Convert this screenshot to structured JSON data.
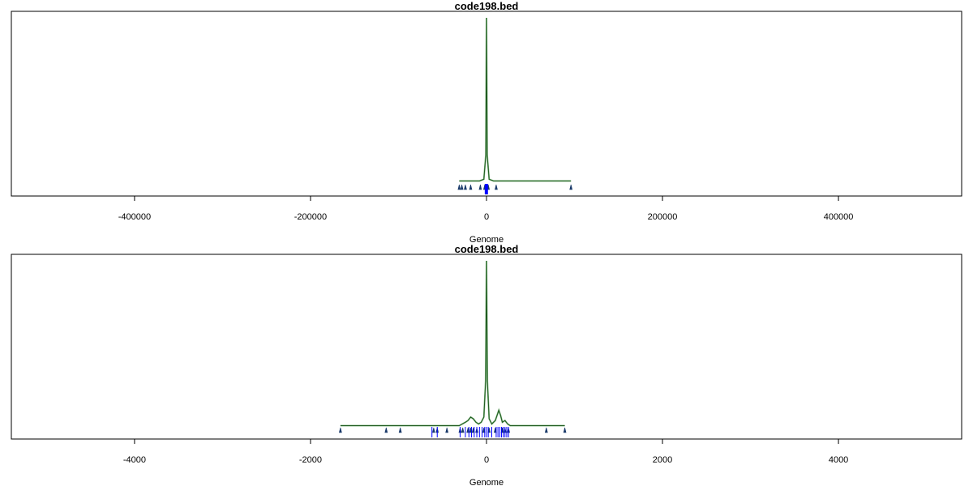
{
  "chart_data": [
    {
      "type": "line",
      "title": "code198.bed",
      "xlabel": "Genome",
      "ylabel": "",
      "xlim": [
        -540000,
        540000
      ],
      "ylim": [
        0,
        1
      ],
      "x_ticks": [
        -400000,
        -200000,
        0,
        200000,
        400000
      ],
      "x_tick_labels": [
        "-400000",
        "-200000",
        "0",
        "200000",
        "400000"
      ],
      "grid": false,
      "colors": {
        "density": "#1f5a1f",
        "density_outline": "#2e8b2e",
        "rug": "#0000ff",
        "marker": "#1a3a6a"
      },
      "density_series": {
        "x": [
          -31000,
          -25000,
          -20000,
          -15000,
          -8000,
          -3000,
          -800,
          0,
          800,
          3000,
          8000,
          12000,
          20000,
          60000,
          96000
        ],
        "y": [
          0.05,
          0.05,
          0.05,
          0.05,
          0.05,
          0.06,
          0.2,
          1.0,
          0.2,
          0.06,
          0.05,
          0.05,
          0.05,
          0.05,
          0.05
        ]
      },
      "peak_markers": [
        -31000,
        -28000,
        -24000,
        -18000,
        -7000,
        -2000,
        2000,
        11000,
        96000
      ],
      "rug_positions": [
        -1500,
        -1200,
        -900,
        -600,
        -300,
        -100,
        0,
        100,
        300,
        600,
        900,
        1200
      ]
    },
    {
      "type": "line",
      "title": "code198.bed",
      "xlabel": "Genome",
      "ylabel": "",
      "xlim": [
        -5400,
        5400
      ],
      "ylim": [
        0,
        1
      ],
      "x_ticks": [
        -4000,
        -2000,
        0,
        2000,
        4000
      ],
      "x_tick_labels": [
        "-4000",
        "-2000",
        "0",
        "2000",
        "4000"
      ],
      "grid": false,
      "colors": {
        "density": "#1f5a1f",
        "density_outline": "#2e8b2e",
        "rug": "#0000ff",
        "marker": "#1a3a6a"
      },
      "density_series": {
        "x": [
          -1660,
          -1150,
          -980,
          -600,
          -550,
          -450,
          -310,
          -240,
          -210,
          -180,
          -150,
          -120,
          -90,
          -60,
          -30,
          -10,
          0,
          10,
          30,
          60,
          100,
          140,
          160,
          180,
          210,
          240,
          270,
          680,
          890
        ],
        "y": [
          0.04,
          0.04,
          0.04,
          0.04,
          0.04,
          0.04,
          0.04,
          0.06,
          0.07,
          0.09,
          0.08,
          0.06,
          0.05,
          0.06,
          0.09,
          0.3,
          1.0,
          0.3,
          0.08,
          0.05,
          0.07,
          0.13,
          0.1,
          0.06,
          0.07,
          0.05,
          0.04,
          0.04,
          0.04
        ]
      },
      "peak_markers": [
        -1660,
        -1140,
        -980,
        -600,
        -560,
        -450,
        -300,
        -270,
        -210,
        -180,
        -150,
        -110,
        -30,
        30,
        100,
        180,
        210,
        250,
        680,
        890
      ],
      "rug_positions": [
        -620,
        -560,
        -300,
        -240,
        -200,
        -170,
        -140,
        -110,
        -80,
        -50,
        -20,
        0,
        20,
        60,
        110,
        130,
        150,
        170,
        190,
        210,
        230,
        250
      ]
    }
  ]
}
